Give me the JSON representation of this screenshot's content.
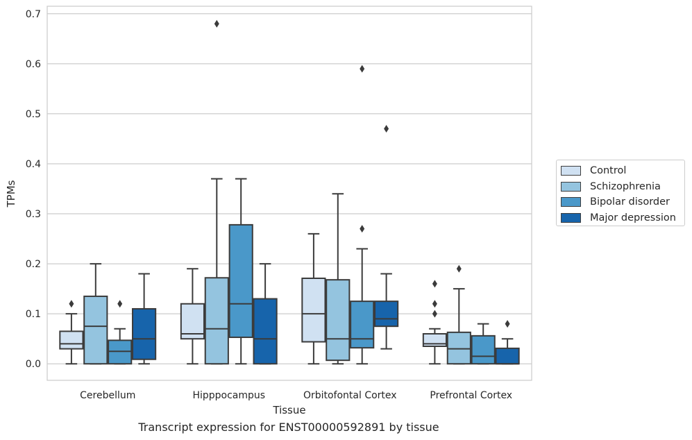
{
  "chart_data": {
    "type": "box",
    "title": "",
    "caption": "Transcript expression for ENST00000592891 by tissue",
    "xlabel": "Tissue",
    "ylabel": "TPMs",
    "ylim": [
      -0.033,
      0.715
    ],
    "yticks": [
      0.0,
      0.1,
      0.2,
      0.3,
      0.4,
      0.5,
      0.6,
      0.7
    ],
    "ytick_labels": [
      "0.0",
      "0.1",
      "0.2",
      "0.3",
      "0.4",
      "0.5",
      "0.6",
      "0.7"
    ],
    "grid": "horizontal",
    "legend_position": "right",
    "categories": [
      "Cerebellum",
      "Hipppocampus",
      "Orbitofontal Cortex",
      "Prefrontal Cortex"
    ],
    "series": [
      {
        "name": "Control",
        "color": "#d0e1f2",
        "boxes": [
          {
            "whislo": 0.0,
            "q1": 0.03,
            "med": 0.04,
            "q3": 0.065,
            "whishi": 0.1,
            "fliers": [
              0.12
            ]
          },
          {
            "whislo": 0.0,
            "q1": 0.05,
            "med": 0.06,
            "q3": 0.12,
            "whishi": 0.19,
            "fliers": []
          },
          {
            "whislo": 0.0,
            "q1": 0.044,
            "med": 0.1,
            "q3": 0.171,
            "whishi": 0.26,
            "fliers": []
          },
          {
            "whislo": 0.0,
            "q1": 0.035,
            "med": 0.04,
            "q3": 0.06,
            "whishi": 0.07,
            "fliers": [
              0.1,
              0.12,
              0.16
            ]
          }
        ]
      },
      {
        "name": "Schizophrenia",
        "color": "#94c4df",
        "boxes": [
          {
            "whislo": 0.0,
            "q1": 0.0,
            "med": 0.075,
            "q3": 0.135,
            "whishi": 0.2,
            "fliers": []
          },
          {
            "whislo": 0.0,
            "q1": 0.0,
            "med": 0.07,
            "q3": 0.172,
            "whishi": 0.37,
            "fliers": [
              0.68
            ]
          },
          {
            "whislo": 0.0,
            "q1": 0.007,
            "med": 0.05,
            "q3": 0.168,
            "whishi": 0.34,
            "fliers": []
          },
          {
            "whislo": 0.0,
            "q1": 0.0,
            "med": 0.03,
            "q3": 0.063,
            "whishi": 0.15,
            "fliers": [
              0.19
            ]
          }
        ]
      },
      {
        "name": "Bipolar disorder",
        "color": "#4a98c9",
        "boxes": [
          {
            "whislo": 0.0,
            "q1": 0.0,
            "med": 0.025,
            "q3": 0.047,
            "whishi": 0.07,
            "fliers": [
              0.12
            ]
          },
          {
            "whislo": 0.0,
            "q1": 0.053,
            "med": 0.12,
            "q3": 0.278,
            "whishi": 0.37,
            "fliers": []
          },
          {
            "whislo": 0.0,
            "q1": 0.032,
            "med": 0.05,
            "q3": 0.125,
            "whishi": 0.23,
            "fliers": [
              0.27,
              0.59
            ]
          },
          {
            "whislo": 0.0,
            "q1": 0.0,
            "med": 0.015,
            "q3": 0.056,
            "whishi": 0.08,
            "fliers": []
          }
        ]
      },
      {
        "name": "Major depression",
        "color": "#1764ab",
        "boxes": [
          {
            "whislo": 0.0,
            "q1": 0.009,
            "med": 0.05,
            "q3": 0.11,
            "whishi": 0.18,
            "fliers": []
          },
          {
            "whislo": 0.0,
            "q1": 0.0,
            "med": 0.05,
            "q3": 0.13,
            "whishi": 0.2,
            "fliers": []
          },
          {
            "whislo": 0.03,
            "q1": 0.075,
            "med": 0.09,
            "q3": 0.125,
            "whishi": 0.18,
            "fliers": [
              0.47
            ]
          },
          {
            "whislo": 0.0,
            "q1": 0.0,
            "med": 0.0,
            "q3": 0.031,
            "whishi": 0.05,
            "fliers": [
              0.08
            ]
          }
        ]
      }
    ]
  }
}
